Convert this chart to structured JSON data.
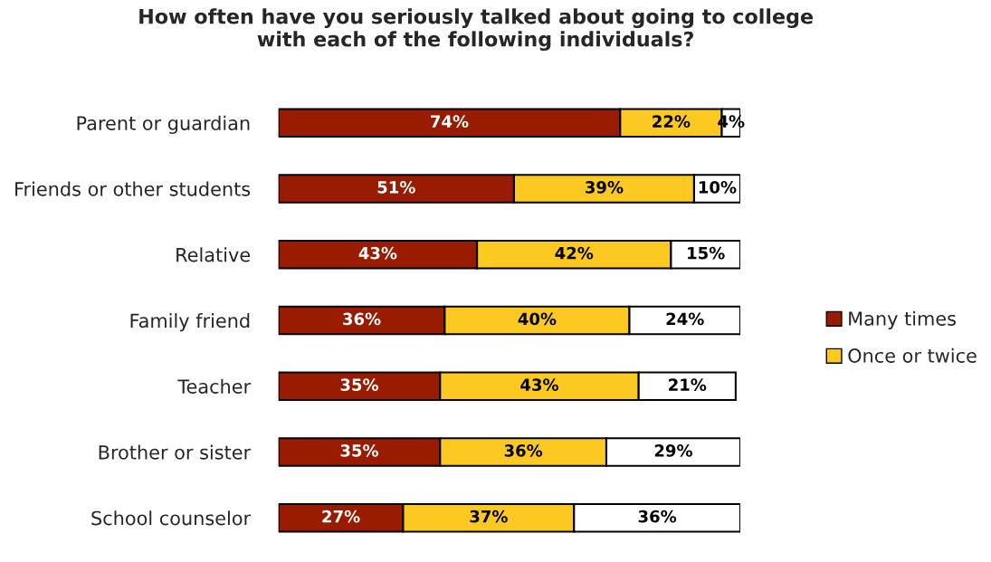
{
  "chart_data": {
    "type": "bar",
    "orientation": "horizontal",
    "stacked": true,
    "legend": "right",
    "grid": false,
    "title": "How often have you seriously talked about going to college\nwith each of the following individuals?",
    "categories": [
      "Parent or guardian",
      "Friends or other students",
      "Relative",
      "Family friend",
      "Teacher",
      "Brother or sister",
      "School counselor"
    ],
    "series": [
      {
        "name": "Many times",
        "color": "#991b00",
        "values": [
          74,
          51,
          43,
          36,
          35,
          35,
          27
        ],
        "value_labels": [
          "74%",
          "51%",
          "43%",
          "36%",
          "35%",
          "35%",
          "27%"
        ]
      },
      {
        "name": "Once or twice",
        "color": "#fcc923",
        "values": [
          22,
          39,
          42,
          40,
          43,
          36,
          37
        ],
        "value_labels": [
          "22%",
          "39%",
          "42%",
          "40%",
          "43%",
          "36%",
          "37%"
        ]
      },
      {
        "color": "#ffffff",
        "values": [
          4,
          10,
          15,
          24,
          21,
          29,
          36
        ],
        "value_labels": [
          "4%",
          "10%",
          "15%",
          "24%",
          "21%",
          "29%",
          "36%"
        ]
      }
    ]
  }
}
